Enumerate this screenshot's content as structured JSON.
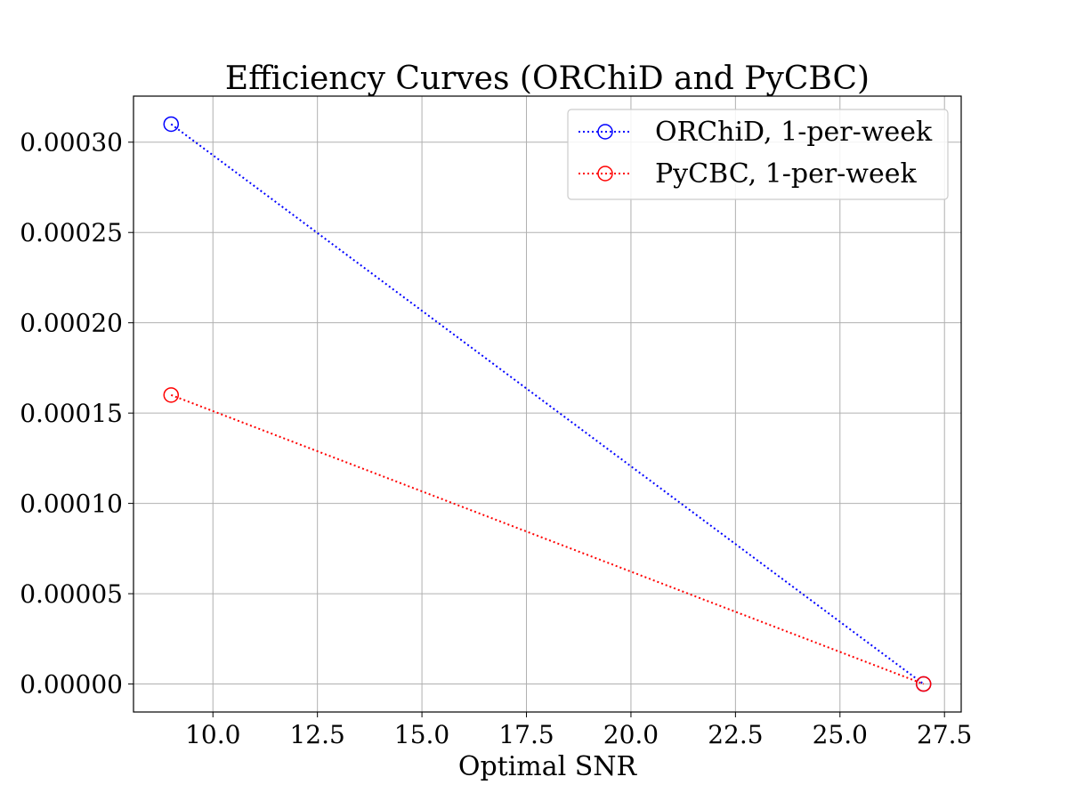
{
  "chart_data": {
    "type": "line",
    "title": "Efficiency Curves (ORChiD and PyCBC)",
    "xlabel": "Optimal SNR",
    "ylabel": "",
    "xlim": [
      8.1,
      27.9
    ],
    "ylim": [
      -1.55e-05,
      0.0003255
    ],
    "xticks": [
      10.0,
      12.5,
      15.0,
      17.5,
      20.0,
      22.5,
      25.0,
      27.5
    ],
    "xtick_labels": [
      "10.0",
      "12.5",
      "15.0",
      "17.5",
      "20.0",
      "22.5",
      "25.0",
      "27.5"
    ],
    "yticks": [
      0.0,
      5e-05,
      0.0001,
      0.00015,
      0.0002,
      0.00025,
      0.0003
    ],
    "ytick_labels": [
      "0.00000",
      "0.00005",
      "0.00010",
      "0.00015",
      "0.00020",
      "0.00025",
      "0.00030"
    ],
    "grid": true,
    "legend_position": "top-right",
    "series": [
      {
        "name": "ORChiD, 1-per-week",
        "color": "#0000ff",
        "x": [
          9.0,
          27.0
        ],
        "y": [
          0.00031,
          0.0
        ]
      },
      {
        "name": "PyCBC, 1-per-week",
        "color": "#ff0000",
        "x": [
          9.0,
          27.0
        ],
        "y": [
          0.00016,
          0.0
        ]
      }
    ]
  }
}
